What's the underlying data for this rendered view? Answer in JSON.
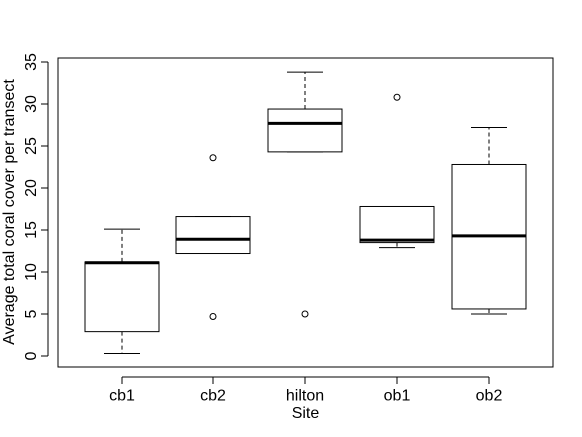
{
  "chart_data": {
    "type": "box",
    "xlabel": "Site",
    "ylabel": "Average total coral cover per transect",
    "ylim": [
      0,
      35
    ],
    "yticks": [
      0,
      5,
      10,
      15,
      20,
      25,
      30,
      35
    ],
    "categories": [
      "cb1",
      "cb2",
      "hilton",
      "ob1",
      "ob2"
    ],
    "boxes": [
      {
        "name": "cb1",
        "whisker_low": 0.3,
        "q1": 2.9,
        "median": 11.1,
        "q3": 11.2,
        "whisker_high": 15.1,
        "outliers": []
      },
      {
        "name": "cb2",
        "whisker_low": 12.2,
        "q1": 12.2,
        "median": 13.9,
        "q3": 16.6,
        "whisker_high": 16.6,
        "outliers": [
          23.6,
          4.7
        ]
      },
      {
        "name": "hilton",
        "whisker_low": 24.3,
        "q1": 24.3,
        "median": 27.7,
        "q3": 29.4,
        "whisker_high": 33.8,
        "outliers": [
          5.0
        ]
      },
      {
        "name": "ob1",
        "whisker_low": 12.9,
        "q1": 13.5,
        "median": 13.8,
        "q3": 17.8,
        "whisker_high": 17.8,
        "outliers": [
          30.8
        ]
      },
      {
        "name": "ob2",
        "whisker_low": 5.0,
        "q1": 5.6,
        "median": 14.3,
        "q3": 22.8,
        "whisker_high": 27.2,
        "outliers": []
      }
    ]
  }
}
